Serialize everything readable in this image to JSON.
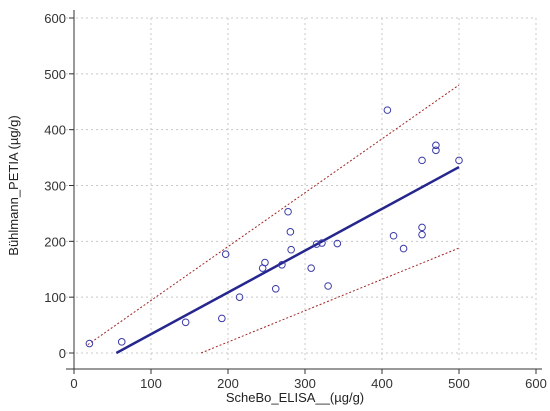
{
  "chart_data": {
    "type": "scatter",
    "title": "",
    "xlabel": "ScheBo_ELISA__(µg/g)",
    "ylabel": "Bühlmann_PETIA (µg/g)",
    "xlim": [
      0,
      600
    ],
    "ylim": [
      0,
      600
    ],
    "x_ticks": [
      0,
      100,
      200,
      300,
      400,
      500,
      600
    ],
    "y_ticks": [
      0,
      100,
      200,
      300,
      400,
      500,
      600
    ],
    "grid": true,
    "points": [
      {
        "x": 20,
        "y": 17
      },
      {
        "x": 62,
        "y": 20
      },
      {
        "x": 145,
        "y": 55
      },
      {
        "x": 192,
        "y": 62
      },
      {
        "x": 197,
        "y": 177
      },
      {
        "x": 215,
        "y": 100
      },
      {
        "x": 245,
        "y": 152
      },
      {
        "x": 248,
        "y": 162
      },
      {
        "x": 262,
        "y": 115
      },
      {
        "x": 270,
        "y": 158
      },
      {
        "x": 278,
        "y": 253
      },
      {
        "x": 281,
        "y": 217
      },
      {
        "x": 282,
        "y": 185
      },
      {
        "x": 308,
        "y": 152
      },
      {
        "x": 315,
        "y": 195
      },
      {
        "x": 322,
        "y": 197
      },
      {
        "x": 330,
        "y": 120
      },
      {
        "x": 342,
        "y": 196
      },
      {
        "x": 407,
        "y": 435
      },
      {
        "x": 415,
        "y": 210
      },
      {
        "x": 428,
        "y": 187
      },
      {
        "x": 452,
        "y": 345
      },
      {
        "x": 452,
        "y": 225
      },
      {
        "x": 452,
        "y": 212
      },
      {
        "x": 470,
        "y": 372
      },
      {
        "x": 470,
        "y": 363
      },
      {
        "x": 500,
        "y": 345
      }
    ],
    "regression_line": {
      "x": [
        55,
        500
      ],
      "y": [
        0,
        333
      ]
    },
    "prediction_upper": {
      "x": [
        18,
        500
      ],
      "y": [
        15,
        480
      ]
    },
    "prediction_lower": {
      "x": [
        165,
        500
      ],
      "y": [
        0,
        188
      ]
    },
    "colors": {
      "points": "#3a3aa8",
      "regression": "#26268f",
      "bounds": "#a02525"
    }
  }
}
